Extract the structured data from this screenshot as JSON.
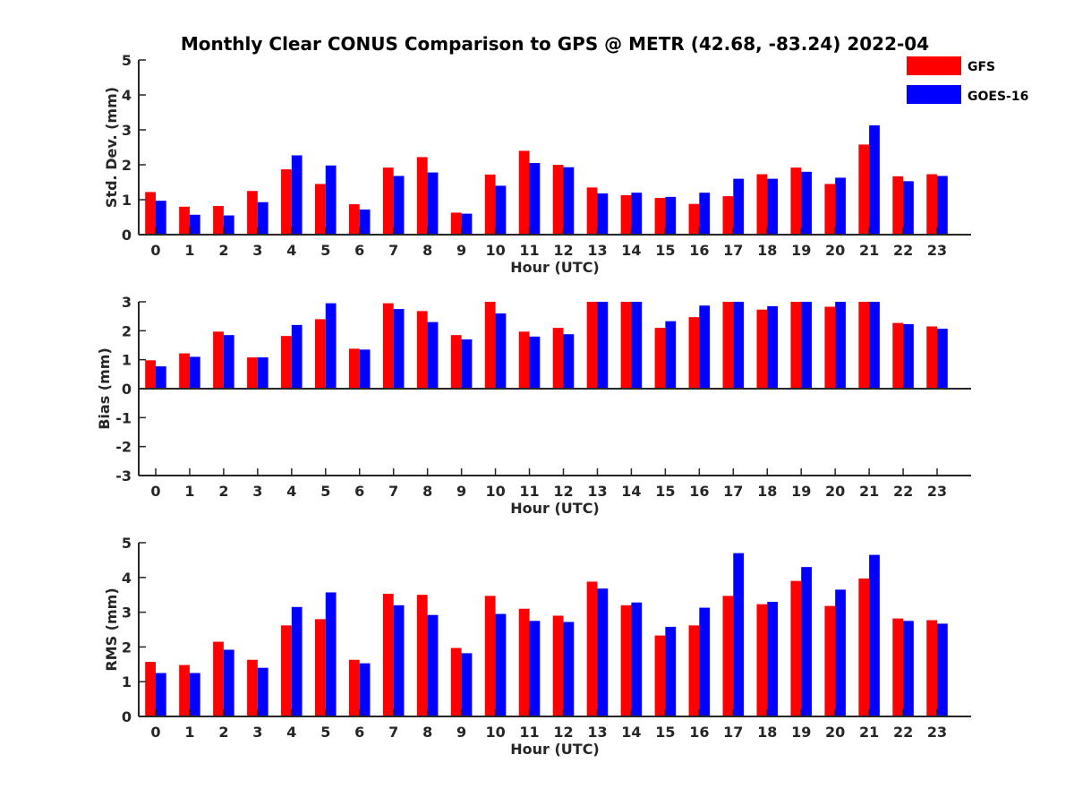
{
  "title": "Monthly Clear CONUS Comparison to GPS @ METR (42.68, -83.24) 2022-04",
  "legend": [
    {
      "name": "GFS",
      "color": "#ff0000"
    },
    {
      "name": "GOES-16",
      "color": "#0000ff"
    }
  ],
  "chart_data": [
    {
      "type": "bar",
      "title": "Monthly Clear CONUS Comparison to GPS @ METR (42.68, -83.24) 2022-04",
      "xlabel": "Hour (UTC)",
      "ylabel": "Std. Dev. (mm)",
      "ylim": [
        0,
        5
      ],
      "yticks": [
        "0",
        "1",
        "2",
        "3",
        "4",
        "5"
      ],
      "categories": [
        "0",
        "1",
        "2",
        "3",
        "4",
        "5",
        "6",
        "7",
        "8",
        "9",
        "10",
        "11",
        "12",
        "13",
        "14",
        "15",
        "16",
        "17",
        "18",
        "19",
        "20",
        "21",
        "22",
        "23"
      ],
      "legend_position": "top-right",
      "series": [
        {
          "name": "GFS",
          "color": "#ff0000",
          "values": [
            1.22,
            0.8,
            0.82,
            1.25,
            1.87,
            1.45,
            0.87,
            1.92,
            2.22,
            0.63,
            1.72,
            2.4,
            2.0,
            1.35,
            1.13,
            1.05,
            0.88,
            1.1,
            1.73,
            1.92,
            1.45,
            2.58,
            1.67,
            1.73
          ]
        },
        {
          "name": "GOES-16",
          "color": "#0000ff",
          "values": [
            0.97,
            0.57,
            0.55,
            0.93,
            2.27,
            1.98,
            0.72,
            1.68,
            1.78,
            0.6,
            1.4,
            2.05,
            1.93,
            1.18,
            1.2,
            1.08,
            1.2,
            1.6,
            1.6,
            1.8,
            1.63,
            3.13,
            1.53,
            1.68
          ]
        }
      ]
    },
    {
      "type": "bar",
      "xlabel": "Hour (UTC)",
      "ylabel": "Bias (mm)",
      "ylim": [
        -3,
        3
      ],
      "yticks": [
        "-3",
        "-2",
        "-1",
        "0",
        "1",
        "2",
        "3"
      ],
      "categories": [
        "0",
        "1",
        "2",
        "3",
        "4",
        "5",
        "6",
        "7",
        "8",
        "9",
        "10",
        "11",
        "12",
        "13",
        "14",
        "15",
        "16",
        "17",
        "18",
        "19",
        "20",
        "21",
        "22",
        "23"
      ],
      "series": [
        {
          "name": "GFS",
          "color": "#ff0000",
          "values": [
            0.98,
            1.22,
            1.97,
            1.08,
            1.82,
            2.4,
            1.38,
            2.95,
            2.68,
            1.85,
            3.0,
            1.97,
            2.1,
            3.0,
            3.0,
            2.1,
            2.47,
            3.0,
            2.73,
            3.0,
            2.83,
            3.0,
            2.27,
            2.15
          ]
        },
        {
          "name": "GOES-16",
          "color": "#0000ff",
          "values": [
            0.77,
            1.1,
            1.85,
            1.08,
            2.2,
            2.95,
            1.35,
            2.75,
            2.3,
            1.7,
            2.6,
            1.8,
            1.88,
            3.0,
            3.0,
            2.33,
            2.87,
            3.0,
            2.85,
            3.0,
            3.0,
            3.0,
            2.23,
            2.07
          ]
        }
      ]
    },
    {
      "type": "bar",
      "xlabel": "Hour (UTC)",
      "ylabel": "RMS (mm)",
      "ylim": [
        0,
        5
      ],
      "yticks": [
        "0",
        "1",
        "2",
        "3",
        "4",
        "5"
      ],
      "categories": [
        "0",
        "1",
        "2",
        "3",
        "4",
        "5",
        "6",
        "7",
        "8",
        "9",
        "10",
        "11",
        "12",
        "13",
        "14",
        "15",
        "16",
        "17",
        "18",
        "19",
        "20",
        "21",
        "22",
        "23"
      ],
      "series": [
        {
          "name": "GFS",
          "color": "#ff0000",
          "values": [
            1.57,
            1.48,
            2.15,
            1.63,
            2.62,
            2.8,
            1.63,
            3.53,
            3.5,
            1.97,
            3.47,
            3.1,
            2.9,
            3.88,
            3.2,
            2.33,
            2.62,
            3.47,
            3.23,
            3.9,
            3.18,
            3.97,
            2.82,
            2.77
          ]
        },
        {
          "name": "GOES-16",
          "color": "#0000ff",
          "values": [
            1.25,
            1.25,
            1.92,
            1.4,
            3.15,
            3.57,
            1.53,
            3.2,
            2.92,
            1.82,
            2.95,
            2.75,
            2.72,
            3.68,
            3.28,
            2.58,
            3.13,
            4.7,
            3.3,
            4.3,
            3.65,
            4.65,
            2.75,
            2.67
          ]
        }
      ]
    }
  ]
}
